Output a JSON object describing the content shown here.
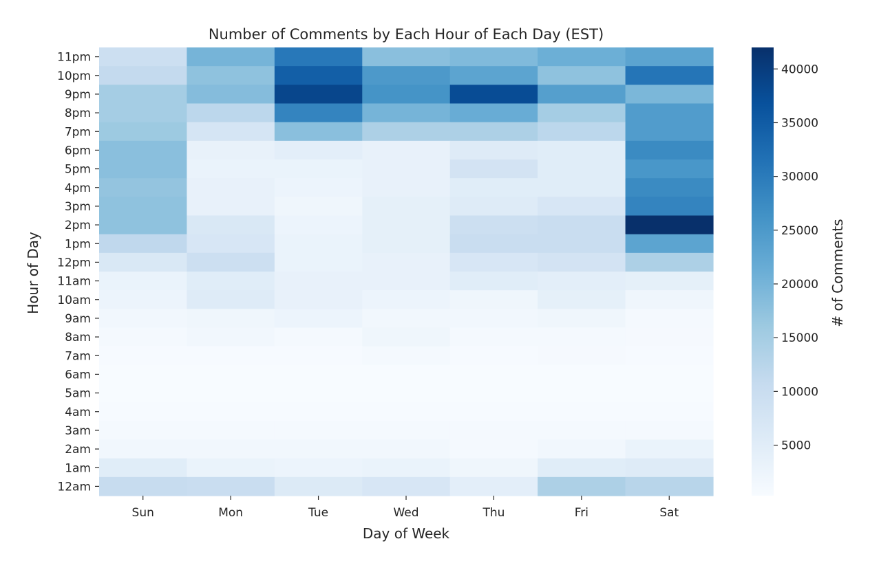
{
  "chart_data": {
    "type": "heatmap",
    "title": "Number of Comments by Each Hour of Each Day (EST)",
    "xlabel": "Day of Week",
    "ylabel": "Hour of Day",
    "x_categories": [
      "Sun",
      "Mon",
      "Tue",
      "Wed",
      "Thu",
      "Fri",
      "Sat"
    ],
    "y_categories": [
      "11pm",
      "10pm",
      "9pm",
      "8pm",
      "7pm",
      "6pm",
      "5pm",
      "4pm",
      "3pm",
      "2pm",
      "1pm",
      "12pm",
      "11am",
      "10am",
      "9am",
      "8am",
      "7am",
      "6am",
      "5am",
      "4am",
      "3am",
      "2am",
      "1am",
      "12am"
    ],
    "values": [
      [
        9500,
        20000,
        30500,
        18000,
        19000,
        21000,
        23000
      ],
      [
        11000,
        17500,
        34500,
        25000,
        23000,
        17500,
        31000
      ],
      [
        15000,
        18500,
        38500,
        26000,
        37500,
        24000,
        19500
      ],
      [
        15000,
        12000,
        28500,
        20000,
        21500,
        15000,
        24500
      ],
      [
        16000,
        7500,
        18000,
        14000,
        14000,
        12000,
        24500
      ],
      [
        18000,
        3500,
        4500,
        3500,
        5500,
        5000,
        27500
      ],
      [
        18000,
        3000,
        3000,
        3500,
        8000,
        5000,
        25500
      ],
      [
        17000,
        3500,
        2500,
        3500,
        5000,
        5000,
        27500
      ],
      [
        17500,
        3500,
        2000,
        4000,
        5500,
        7000,
        28500
      ],
      [
        17500,
        6500,
        2500,
        4000,
        9500,
        10000,
        42000
      ],
      [
        11500,
        7000,
        3000,
        4000,
        10000,
        10000,
        23000
      ],
      [
        6500,
        9500,
        3000,
        3500,
        7000,
        8000,
        14000
      ],
      [
        3000,
        5000,
        3500,
        3500,
        5000,
        4500,
        4000
      ],
      [
        2500,
        5500,
        3500,
        2500,
        2000,
        4000,
        2000
      ],
      [
        1500,
        2000,
        2500,
        1500,
        1500,
        2000,
        1000
      ],
      [
        1000,
        1500,
        1000,
        2000,
        1000,
        1000,
        800
      ],
      [
        500,
        500,
        500,
        1000,
        500,
        800,
        500
      ],
      [
        300,
        300,
        300,
        300,
        300,
        300,
        300
      ],
      [
        300,
        300,
        300,
        300,
        300,
        300,
        300
      ],
      [
        500,
        500,
        500,
        500,
        500,
        500,
        500
      ],
      [
        1000,
        1000,
        1000,
        1000,
        1000,
        1000,
        1000
      ],
      [
        1500,
        1500,
        1500,
        1500,
        1000,
        1500,
        3000
      ],
      [
        5000,
        3000,
        2500,
        3000,
        2000,
        5000,
        5500
      ],
      [
        10500,
        10000,
        6000,
        7000,
        4500,
        14000,
        12500
      ]
    ],
    "colorbar": {
      "label": "# of Comments",
      "min": 300,
      "max": 42000,
      "ticks": [
        5000,
        10000,
        15000,
        20000,
        25000,
        30000,
        35000,
        40000
      ],
      "colormap": "Blues"
    }
  }
}
